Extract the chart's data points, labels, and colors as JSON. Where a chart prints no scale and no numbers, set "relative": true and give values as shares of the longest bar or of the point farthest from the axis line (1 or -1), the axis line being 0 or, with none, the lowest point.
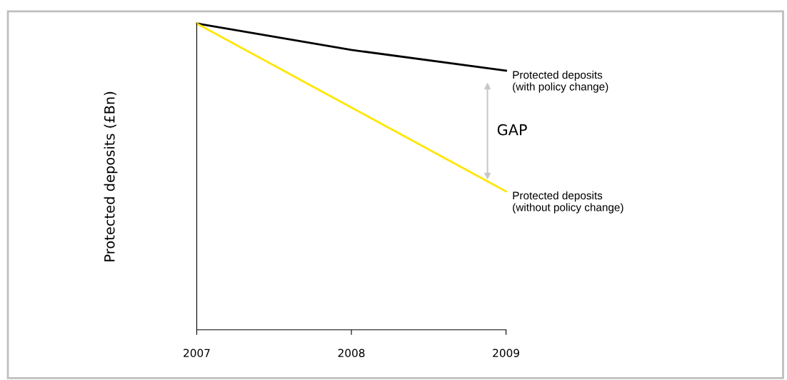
{
  "chart_data": {
    "type": "line",
    "relative": true,
    "ylabel": "Protected deposits (£Bn)",
    "categories": [
      "2007",
      "2008",
      "2009"
    ],
    "series": [
      {
        "name": "Protected deposits\n(with policy change)",
        "color": "#000000",
        "values": [
          1,
          0.914,
          0.846
        ]
      },
      {
        "name": "Protected deposits\n(without policy change)",
        "color": "#ffe600",
        "values": [
          1,
          0.726,
          0.452
        ]
      }
    ],
    "annotations": [
      "GAP"
    ],
    "grid": false,
    "legend": false,
    "marker": "none",
    "line_style": "solid"
  }
}
